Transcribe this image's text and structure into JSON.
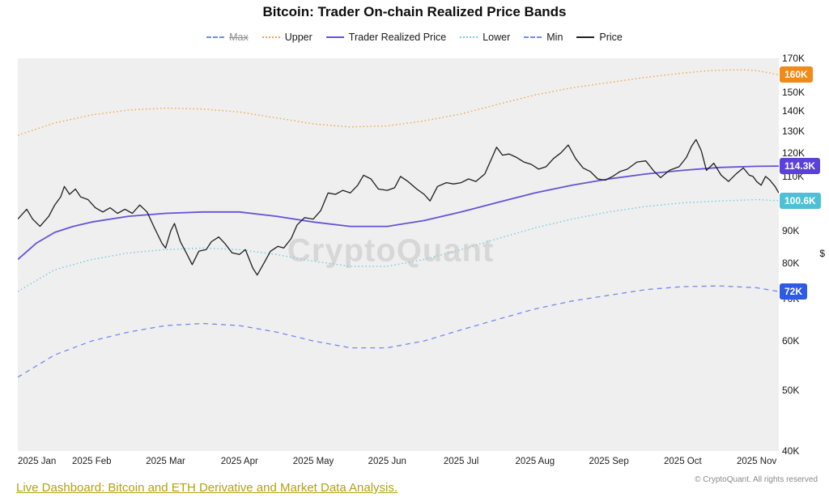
{
  "title": "Bitcoin: Trader On-chain Realized Price Bands",
  "watermark": "CryptoQuant",
  "legend": [
    {
      "id": "max",
      "label": "Max",
      "color": "#7688ee",
      "line_style": "dash",
      "strike": true
    },
    {
      "id": "upper",
      "label": "Upper",
      "color": "#f0a643",
      "line_style": "dot",
      "strike": false
    },
    {
      "id": "trader",
      "label": "Trader Realized Price",
      "color": "#6553d6",
      "line_style": "solid",
      "strike": false
    },
    {
      "id": "lower",
      "label": "Lower",
      "color": "#74cade",
      "line_style": "dot",
      "strike": false
    },
    {
      "id": "min",
      "label": "Min",
      "color": "#7688ee",
      "line_style": "dash",
      "strike": false
    },
    {
      "id": "price",
      "label": "Price",
      "color": "#1f1f1f",
      "line_style": "solid",
      "strike": false
    }
  ],
  "badges": [
    {
      "label": "160K",
      "v": 160,
      "color": "#f08a18"
    },
    {
      "label": "114.3K",
      "v": 114.3,
      "color": "#5a41dc"
    },
    {
      "label": "100.6K",
      "v": 100.6,
      "color": "#4ec0d6"
    },
    {
      "label": "72K",
      "v": 72,
      "color": "#2e5be4"
    }
  ],
  "footer": {
    "link": "Live Dashboard: Bitcoin and ETH Derivative and Market Data Analysis.",
    "copyright": "© CryptoQuant. All rights reserved"
  },
  "chart_data": {
    "type": "line",
    "title": "Bitcoin: Trader On-chain Realized Price Bands",
    "yscale": "log",
    "y_unit": "$",
    "values_in": "thousands_usd",
    "ylim_k": [
      40,
      170
    ],
    "y_ticks": [
      {
        "label": "170K",
        "v": 170
      },
      {
        "label": "160K",
        "v": 160
      },
      {
        "label": "150K",
        "v": 150
      },
      {
        "label": "140K",
        "v": 140
      },
      {
        "label": "130K",
        "v": 130
      },
      {
        "label": "120K",
        "v": 120
      },
      {
        "label": "110K",
        "v": 110
      },
      {
        "label": "100K",
        "v": 100
      },
      {
        "label": "90K",
        "v": 90
      },
      {
        "label": "80K",
        "v": 80
      },
      {
        "label": "70K",
        "v": 70
      },
      {
        "label": "60K",
        "v": 60
      },
      {
        "label": "50K",
        "v": 50
      },
      {
        "label": "40K",
        "v": 40
      }
    ],
    "x_unit": "months_since_2025_jan",
    "x_range": [
      0,
      10.3
    ],
    "x_tick_labels": [
      "2025 Jan",
      "2025 Feb",
      "2025 Mar",
      "2025 Apr",
      "2025 May",
      "2025 Jun",
      "2025 Jul",
      "2025 Aug",
      "2025 Sep",
      "2025 Oct",
      "2025 Nov"
    ],
    "grid": false,
    "legend_position": "top",
    "series": [
      {
        "id": "max",
        "name": "Max",
        "hidden": true,
        "color": "#7688ee",
        "dash": "6,5",
        "width": 1.3,
        "points": []
      },
      {
        "id": "upper",
        "name": "Upper",
        "hidden": false,
        "color": "#f0a643",
        "dash": "1.5,3",
        "width": 1.4,
        "points": [
          [
            0,
            128
          ],
          [
            0.5,
            134
          ],
          [
            1,
            138
          ],
          [
            1.5,
            140.5
          ],
          [
            2,
            141.5
          ],
          [
            2.5,
            141
          ],
          [
            3,
            139.5
          ],
          [
            3.5,
            136.5
          ],
          [
            4,
            133.5
          ],
          [
            4.5,
            132
          ],
          [
            5,
            132.5
          ],
          [
            5.5,
            135
          ],
          [
            6,
            138.5
          ],
          [
            6.5,
            143.5
          ],
          [
            7,
            148.5
          ],
          [
            7.5,
            152.5
          ],
          [
            8,
            155.5
          ],
          [
            8.5,
            158.5
          ],
          [
            9,
            161
          ],
          [
            9.4,
            162.5
          ],
          [
            9.8,
            163
          ],
          [
            10,
            162.5
          ],
          [
            10.3,
            160
          ]
        ]
      },
      {
        "id": "trader",
        "name": "Trader Realized Price",
        "hidden": false,
        "color": "#6553d6",
        "dash": "",
        "width": 1.8,
        "points": [
          [
            0,
            81
          ],
          [
            0.25,
            86
          ],
          [
            0.5,
            89.5
          ],
          [
            0.75,
            91.5
          ],
          [
            1,
            93
          ],
          [
            1.5,
            95
          ],
          [
            2,
            96
          ],
          [
            2.5,
            96.5
          ],
          [
            3,
            96.5
          ],
          [
            3.5,
            95
          ],
          [
            4,
            93
          ],
          [
            4.5,
            91.5
          ],
          [
            5,
            91.5
          ],
          [
            5.5,
            93.5
          ],
          [
            6,
            96.5
          ],
          [
            6.5,
            100
          ],
          [
            7,
            103.5
          ],
          [
            7.5,
            106.5
          ],
          [
            8,
            109
          ],
          [
            8.5,
            111
          ],
          [
            9,
            112.5
          ],
          [
            9.5,
            113.7
          ],
          [
            10,
            114.2
          ],
          [
            10.3,
            114.3
          ]
        ]
      },
      {
        "id": "lower",
        "name": "Lower",
        "hidden": false,
        "color": "#74cade",
        "dash": "1.5,3",
        "width": 1.4,
        "points": [
          [
            0,
            72
          ],
          [
            0.5,
            78
          ],
          [
            1,
            81
          ],
          [
            1.5,
            83
          ],
          [
            2,
            84
          ],
          [
            2.5,
            84.5
          ],
          [
            3,
            84
          ],
          [
            3.5,
            82.5
          ],
          [
            4,
            80.5
          ],
          [
            4.5,
            79
          ],
          [
            5,
            79
          ],
          [
            5.5,
            81
          ],
          [
            6,
            84
          ],
          [
            6.5,
            87.5
          ],
          [
            7,
            91
          ],
          [
            7.5,
            94
          ],
          [
            8,
            96.5
          ],
          [
            8.5,
            98.5
          ],
          [
            9,
            99.8
          ],
          [
            9.5,
            100.5
          ],
          [
            10,
            101
          ],
          [
            10.3,
            100.6
          ]
        ]
      },
      {
        "id": "min",
        "name": "Min",
        "hidden": false,
        "color": "#7688ee",
        "dash": "6,5",
        "width": 1.3,
        "points": [
          [
            0,
            52.5
          ],
          [
            0.5,
            57
          ],
          [
            1,
            60
          ],
          [
            1.5,
            62
          ],
          [
            2,
            63.5
          ],
          [
            2.5,
            64
          ],
          [
            3,
            63.5
          ],
          [
            3.5,
            62
          ],
          [
            4,
            60
          ],
          [
            4.5,
            58.5
          ],
          [
            5,
            58.5
          ],
          [
            5.5,
            60
          ],
          [
            6,
            62.5
          ],
          [
            6.5,
            65
          ],
          [
            7,
            67.5
          ],
          [
            7.5,
            69.5
          ],
          [
            8,
            71
          ],
          [
            8.5,
            72.5
          ],
          [
            9,
            73.3
          ],
          [
            9.5,
            73.5
          ],
          [
            10,
            73
          ],
          [
            10.3,
            72
          ]
        ]
      },
      {
        "id": "price",
        "name": "Price",
        "hidden": false,
        "color": "#1f1f1f",
        "dash": "",
        "width": 1.3,
        "points": [
          [
            0,
            94
          ],
          [
            0.12,
            97.5
          ],
          [
            0.2,
            94
          ],
          [
            0.3,
            91.5
          ],
          [
            0.42,
            95
          ],
          [
            0.5,
            99
          ],
          [
            0.58,
            102
          ],
          [
            0.63,
            106
          ],
          [
            0.7,
            103
          ],
          [
            0.78,
            105
          ],
          [
            0.85,
            102
          ],
          [
            0.95,
            101
          ],
          [
            1.05,
            98
          ],
          [
            1.15,
            96.5
          ],
          [
            1.25,
            98
          ],
          [
            1.35,
            96
          ],
          [
            1.45,
            97.5
          ],
          [
            1.55,
            96
          ],
          [
            1.65,
            99
          ],
          [
            1.75,
            96.5
          ],
          [
            1.85,
            91
          ],
          [
            1.95,
            86
          ],
          [
            2.0,
            84.5
          ],
          [
            2.07,
            90
          ],
          [
            2.12,
            92.5
          ],
          [
            2.2,
            86.5
          ],
          [
            2.28,
            83
          ],
          [
            2.36,
            79.5
          ],
          [
            2.45,
            83.5
          ],
          [
            2.55,
            84
          ],
          [
            2.62,
            86.5
          ],
          [
            2.72,
            88
          ],
          [
            2.8,
            86
          ],
          [
            2.9,
            83
          ],
          [
            3.0,
            82.5
          ],
          [
            3.08,
            84
          ],
          [
            3.18,
            78.5
          ],
          [
            3.24,
            76.5
          ],
          [
            3.32,
            79.5
          ],
          [
            3.42,
            83.5
          ],
          [
            3.52,
            85
          ],
          [
            3.6,
            84.5
          ],
          [
            3.7,
            87.5
          ],
          [
            3.78,
            92
          ],
          [
            3.88,
            94.5
          ],
          [
            4.0,
            94
          ],
          [
            4.1,
            97
          ],
          [
            4.2,
            103.5
          ],
          [
            4.3,
            103
          ],
          [
            4.4,
            104.5
          ],
          [
            4.5,
            103.5
          ],
          [
            4.6,
            106.5
          ],
          [
            4.68,
            110.5
          ],
          [
            4.78,
            109
          ],
          [
            4.88,
            105
          ],
          [
            5.0,
            104.5
          ],
          [
            5.1,
            105.5
          ],
          [
            5.18,
            110
          ],
          [
            5.28,
            108
          ],
          [
            5.4,
            105
          ],
          [
            5.5,
            103
          ],
          [
            5.58,
            100.5
          ],
          [
            5.68,
            106
          ],
          [
            5.8,
            107.5
          ],
          [
            5.9,
            107
          ],
          [
            6.0,
            107.5
          ],
          [
            6.1,
            109
          ],
          [
            6.2,
            108
          ],
          [
            6.32,
            111
          ],
          [
            6.42,
            118
          ],
          [
            6.48,
            122.5
          ],
          [
            6.56,
            119
          ],
          [
            6.65,
            119.5
          ],
          [
            6.75,
            118
          ],
          [
            6.85,
            116
          ],
          [
            6.95,
            115
          ],
          [
            7.05,
            113
          ],
          [
            7.15,
            114
          ],
          [
            7.25,
            117.5
          ],
          [
            7.35,
            120
          ],
          [
            7.45,
            123.5
          ],
          [
            7.55,
            117.5
          ],
          [
            7.65,
            113.5
          ],
          [
            7.75,
            112
          ],
          [
            7.85,
            109
          ],
          [
            7.95,
            108.5
          ],
          [
            8.05,
            110
          ],
          [
            8.15,
            112
          ],
          [
            8.25,
            113
          ],
          [
            8.38,
            116
          ],
          [
            8.5,
            116.5
          ],
          [
            8.6,
            112.5
          ],
          [
            8.7,
            109.5
          ],
          [
            8.82,
            112.5
          ],
          [
            8.95,
            114
          ],
          [
            9.05,
            118
          ],
          [
            9.12,
            123
          ],
          [
            9.18,
            126
          ],
          [
            9.25,
            121
          ],
          [
            9.32,
            112.5
          ],
          [
            9.42,
            115.5
          ],
          [
            9.52,
            110.5
          ],
          [
            9.62,
            108
          ],
          [
            9.72,
            111
          ],
          [
            9.82,
            113.5
          ],
          [
            9.9,
            110.5
          ],
          [
            9.95,
            110
          ],
          [
            10.0,
            108
          ],
          [
            10.06,
            106.5
          ],
          [
            10.12,
            110
          ],
          [
            10.18,
            108.5
          ],
          [
            10.25,
            106
          ],
          [
            10.3,
            103.5
          ]
        ]
      }
    ]
  }
}
